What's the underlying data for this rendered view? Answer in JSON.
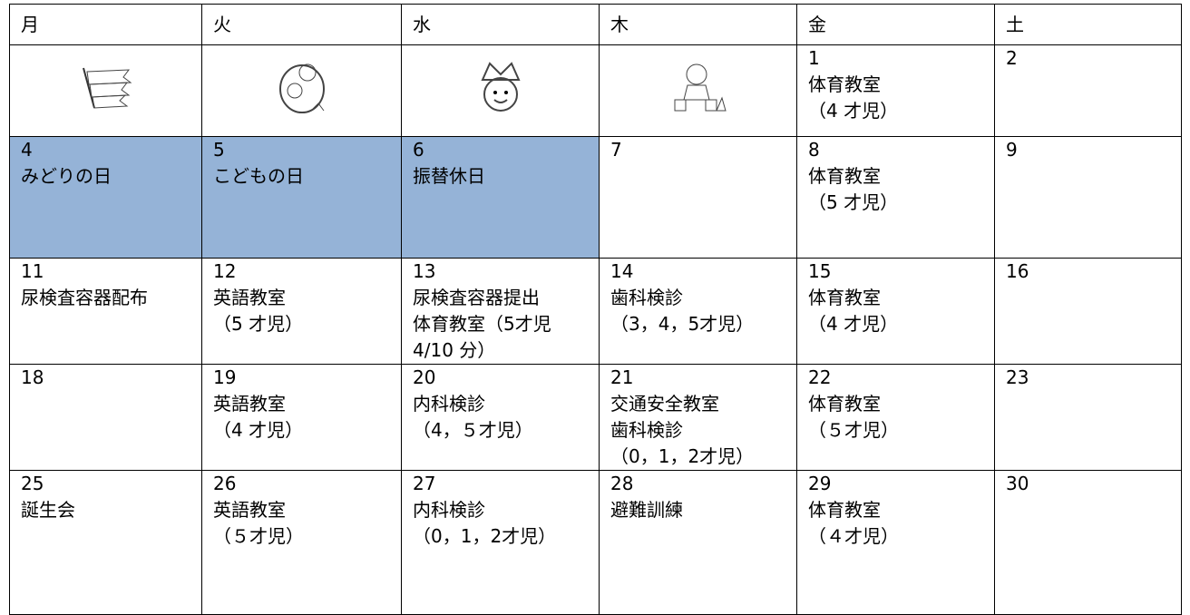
{
  "header": [
    "月",
    "火",
    "水",
    "木",
    "金",
    "土"
  ],
  "rows": [
    [
      [],
      [],
      [],
      [],
      [
        "1",
        "体育教室",
        "（4 才児）"
      ],
      [
        "2"
      ]
    ],
    [
      [
        "4",
        "みどりの日"
      ],
      [
        "5",
        "こどもの日"
      ],
      [
        "6",
        "振替休日"
      ],
      [
        "7"
      ],
      [
        "8",
        "体育教室",
        "（5 才児）"
      ],
      [
        "9"
      ]
    ],
    [
      [
        "11",
        "尿検査容器配布"
      ],
      [
        "12",
        "英語教室",
        "（5 才児）"
      ],
      [
        "13",
        "尿検査容器提出",
        "体育教室（5才児",
        "4/10 分）"
      ],
      [
        "14",
        "歯科検診",
        "（3，4，5才児）"
      ],
      [
        "15",
        "体育教室",
        "（4 才児）"
      ],
      [
        "16"
      ]
    ],
    [
      [
        "18"
      ],
      [
        "19",
        "英語教室",
        "（4 才児）"
      ],
      [
        "20",
        "内科検診",
        "（4，５才児）"
      ],
      [
        "21",
        "交通安全教室",
        "歯科検診",
        "（0，1，2才児）"
      ],
      [
        "22",
        "体育教室",
        "（５才児）"
      ],
      [
        "23"
      ]
    ],
    [
      [
        "25",
        "誕生会"
      ],
      [
        "26",
        "英語教室",
        "（５才児）"
      ],
      [
        "27",
        "内科検診",
        "（0，1，2才児）"
      ],
      [
        "28",
        "避難訓練"
      ],
      [
        "29",
        "体育教室",
        "（４才児）"
      ],
      [
        "30"
      ]
    ]
  ]
}
